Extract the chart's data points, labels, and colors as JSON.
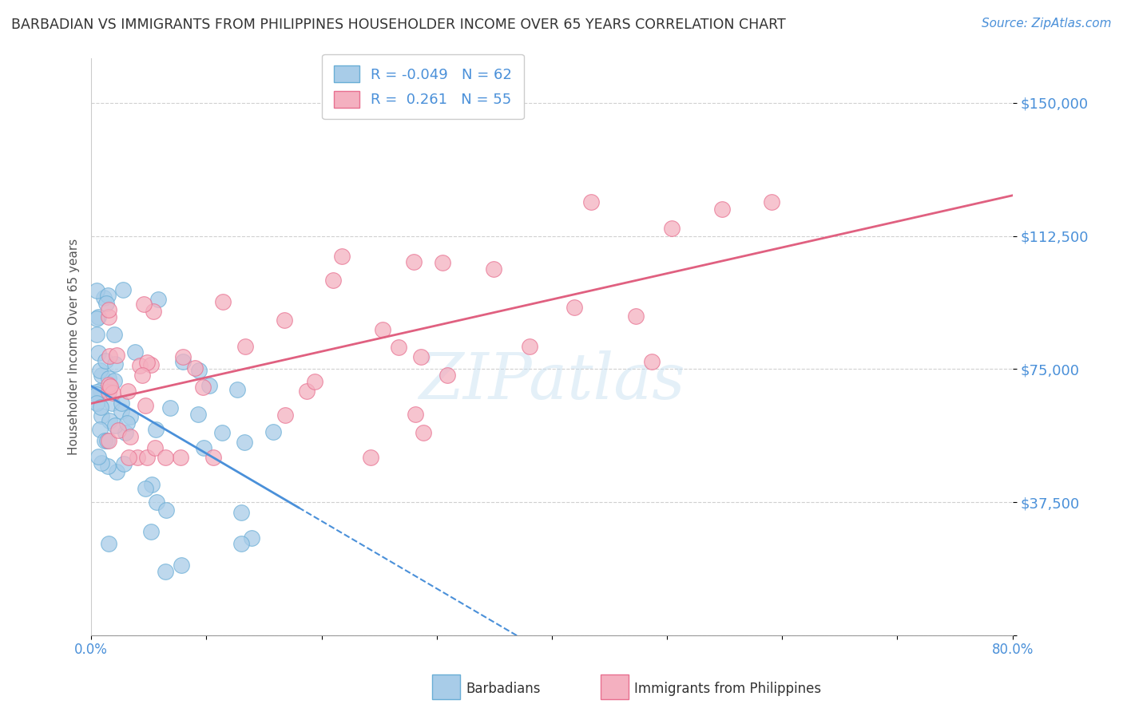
{
  "title": "BARBADIAN VS IMMIGRANTS FROM PHILIPPINES HOUSEHOLDER INCOME OVER 65 YEARS CORRELATION CHART",
  "source": "Source: ZipAtlas.com",
  "ylabel": "Householder Income Over 65 years",
  "xlim": [
    0.0,
    0.8
  ],
  "ylim": [
    0,
    162500
  ],
  "yticks": [
    0,
    37500,
    75000,
    112500,
    150000
  ],
  "ytick_labels": [
    "",
    "$37,500",
    "$75,000",
    "$112,500",
    "$150,000"
  ],
  "xtick_left_label": "0.0%",
  "xtick_right_label": "80.0%",
  "watermark": "ZIPatlas",
  "blue_R": -0.049,
  "blue_N": 62,
  "pink_R": 0.261,
  "pink_N": 55,
  "blue_scatter_color": "#a8cce8",
  "pink_scatter_color": "#f4b0c0",
  "blue_edge_color": "#6aaed6",
  "pink_edge_color": "#e87090",
  "blue_line_color": "#4a90d9",
  "pink_line_color": "#e06080",
  "title_color": "#333333",
  "source_color": "#4a90d9",
  "axis_label_color": "#555555",
  "tick_label_color_y": "#4a90d9",
  "grid_color": "#d0d0d0",
  "background_color": "#ffffff",
  "legend_label_color": "#4a90d9",
  "barbadians_label": "Barbadians",
  "philippines_label": "Immigrants from Philippines"
}
